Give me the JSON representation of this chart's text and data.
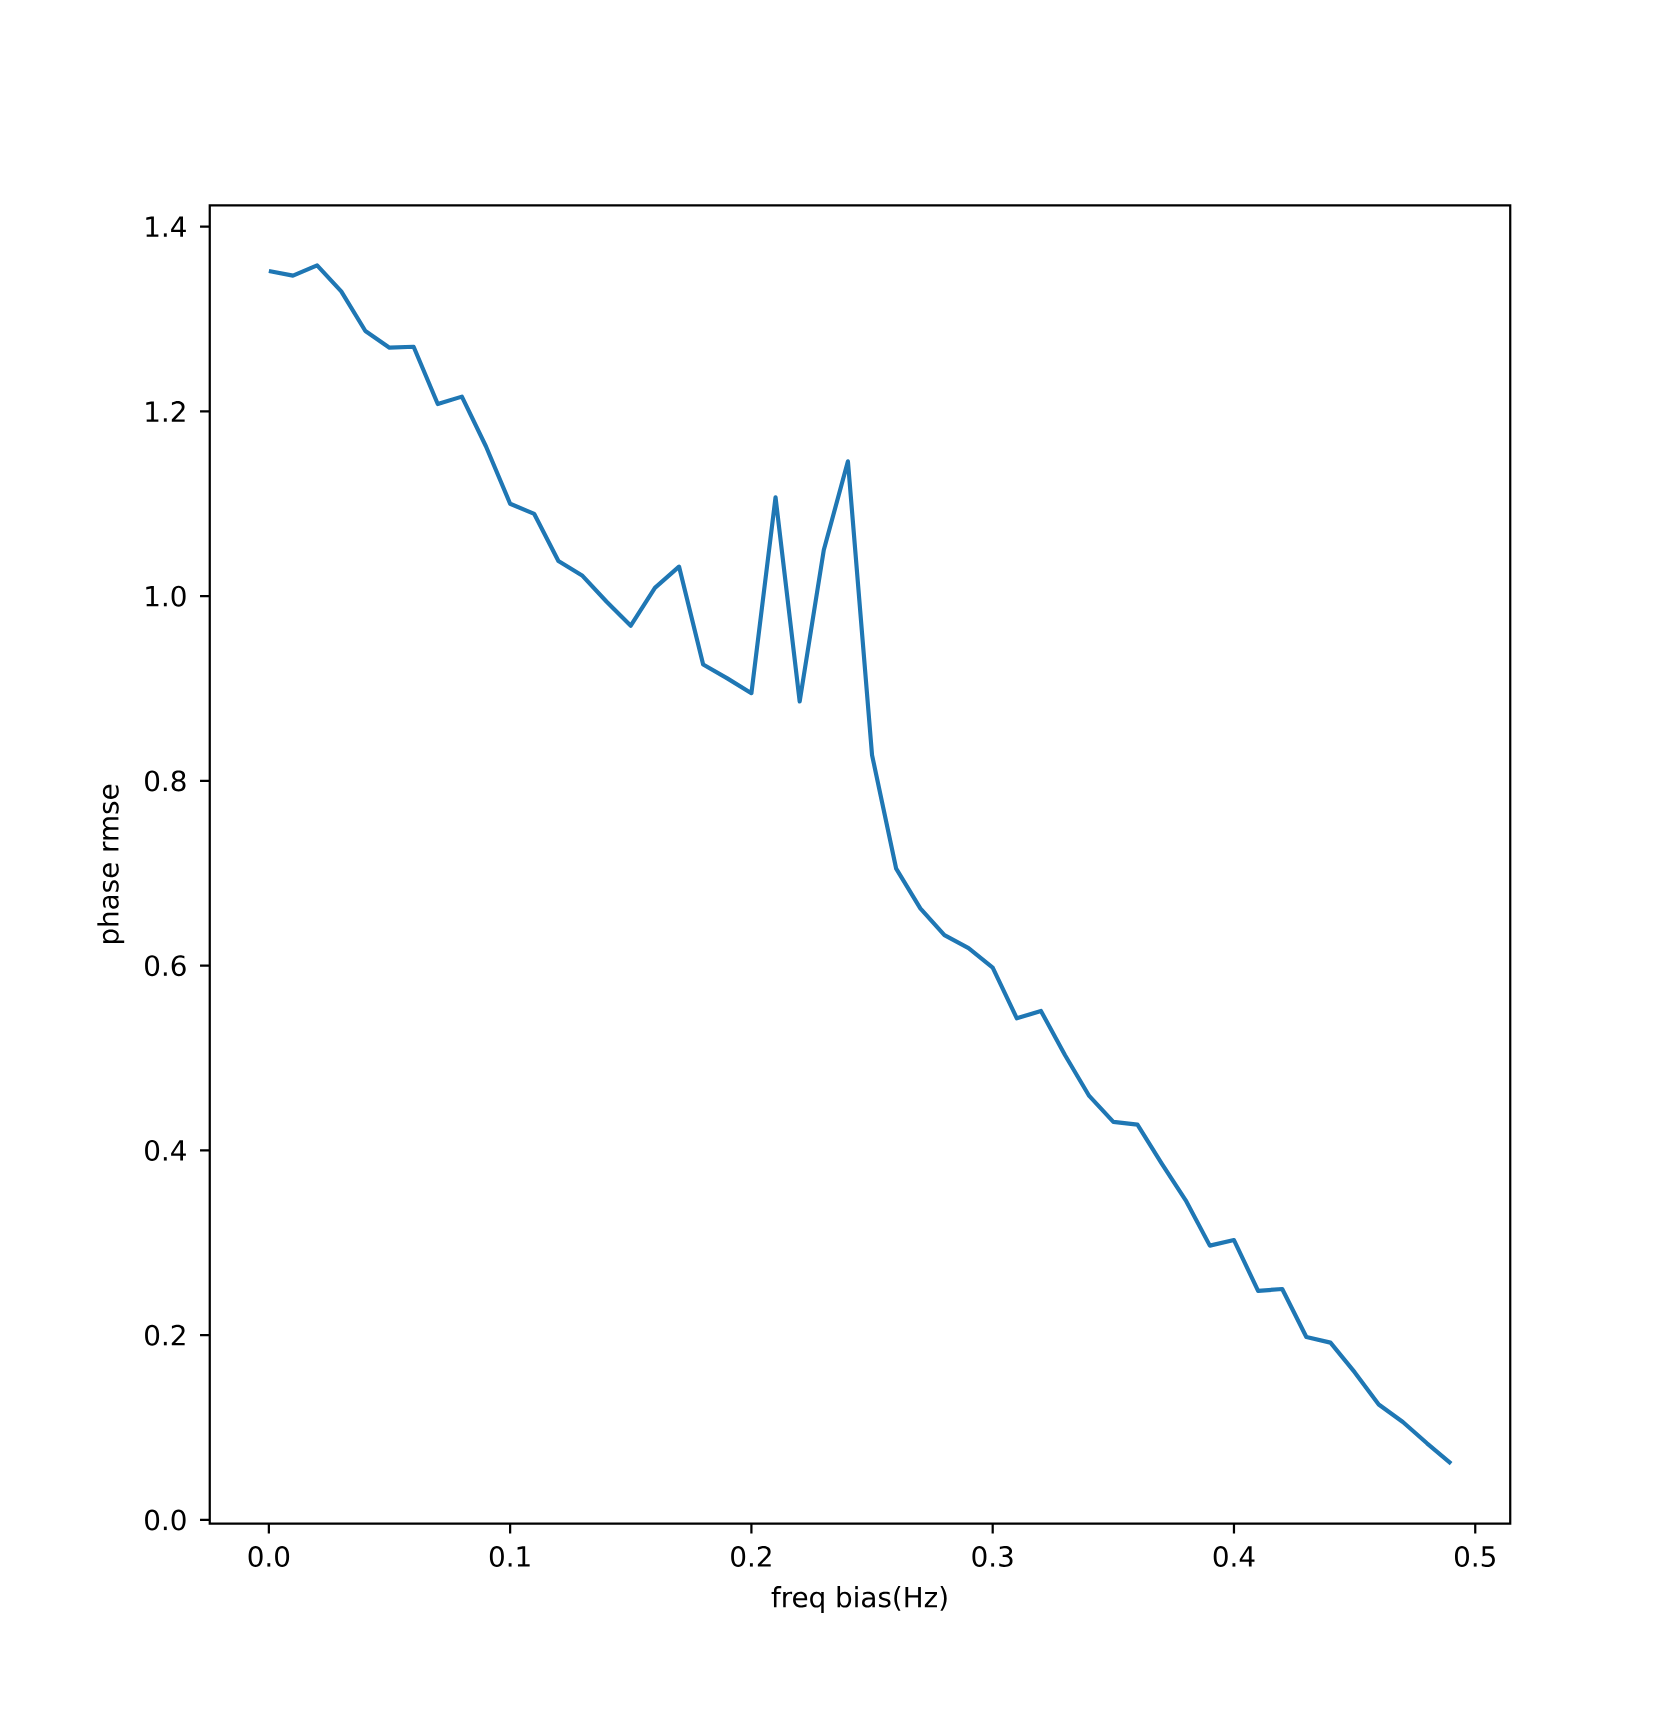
{
  "chart_data": {
    "type": "line",
    "xlabel": "freq bias(Hz)",
    "ylabel": "phase rmse",
    "x": [
      0,
      0.01,
      0.02,
      0.03,
      0.04,
      0.05,
      0.06,
      0.07,
      0.08,
      0.09,
      0.1,
      0.11,
      0.12,
      0.13,
      0.14,
      0.15,
      0.16,
      0.17,
      0.18,
      0.19,
      0.2,
      0.21,
      0.22,
      0.23,
      0.24,
      0.25,
      0.26,
      0.27,
      0.28,
      0.29,
      0.3,
      0.31,
      0.32,
      0.33,
      0.34,
      0.35,
      0.36,
      0.37,
      0.38,
      0.39,
      0.4,
      0.41,
      0.42,
      0.43,
      0.44,
      0.45,
      0.46,
      0.47,
      0.48,
      0.49
    ],
    "series": [
      {
        "color": "#1f77b4",
        "values": [
          1.352,
          1.347,
          1.358,
          1.33,
          1.287,
          1.269,
          1.27,
          1.208,
          1.216,
          1.162,
          1.1,
          1.089,
          1.038,
          1.022,
          0.994,
          0.968,
          1.009,
          1.032,
          0.926,
          0.911,
          0.895,
          1.107,
          0.886,
          1.05,
          1.146,
          0.828,
          0.705,
          0.662,
          0.633,
          0.619,
          0.598,
          0.543,
          0.551,
          0.503,
          0.459,
          0.431,
          0.428,
          0.386,
          0.346,
          0.297,
          0.303,
          0.248,
          0.25,
          0.198,
          0.192,
          0.16,
          0.125,
          0.106,
          0.083,
          0.061
        ]
      }
    ],
    "xlim": [
      -0.0245,
      0.5145
    ],
    "ylim": [
      -0.004,
      1.423
    ],
    "xticks": [
      {
        "value": 0,
        "label": "0.0"
      },
      0.1,
      0.2,
      0.3,
      0.4,
      0.5
    ],
    "yticks": [
      {
        "value": 0,
        "label": "0.0"
      },
      0.2,
      0.4,
      0.6,
      0.8,
      {
        "value": 1,
        "label": "1.0"
      },
      1.2,
      1.4
    ],
    "marker": "none",
    "line_style": "solid"
  }
}
